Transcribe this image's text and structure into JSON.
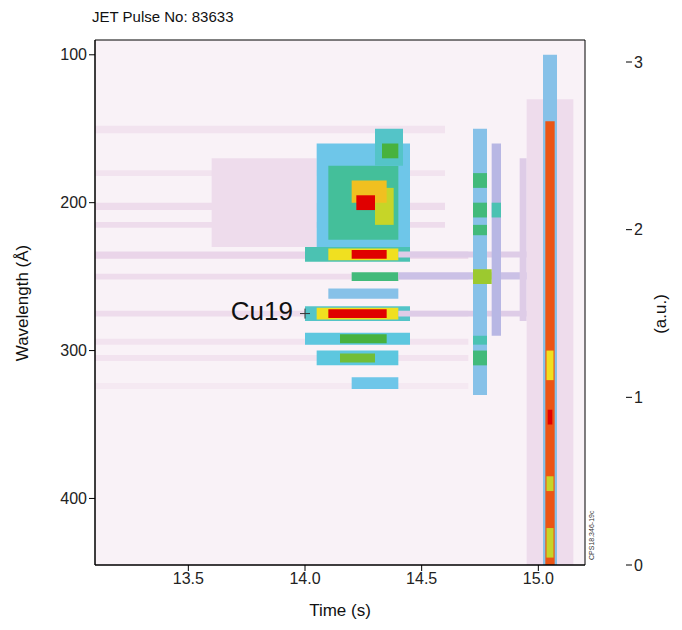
{
  "chart_data": {
    "type": "heatmap",
    "title": "JET Pulse No: 83633",
    "x_label": "Time (s)",
    "y_label": "Wavelength (Å)",
    "xlim": [
      13.1,
      15.2
    ],
    "xticks": [
      13.5,
      {
        "value": 14,
        "label": "14.0"
      },
      14.5,
      {
        "value": 15,
        "label": "15.0"
      }
    ],
    "ylim": [
      445,
      90
    ],
    "yticks": [
      100,
      200,
      300,
      400
    ],
    "colorbar": {
      "label": "(a.u.)",
      "range": [
        0,
        3
      ],
      "ticks": [
        0,
        1,
        2,
        3
      ]
    },
    "annotations": [
      {
        "text": "Cu19",
        "x": 14.0,
        "y": 275
      }
    ],
    "footnote": "CPS18.346-19c",
    "cells": [
      [
        13.1,
        15.2,
        90,
        445,
        0.25
      ],
      [
        13.1,
        14.6,
        148,
        153,
        0.5
      ],
      [
        13.1,
        14.6,
        178,
        182,
        0.5
      ],
      [
        13.1,
        14.6,
        200,
        205,
        0.6
      ],
      [
        13.1,
        14.6,
        213,
        217,
        0.6
      ],
      [
        13.1,
        14.7,
        233,
        238,
        0.7
      ],
      [
        13.1,
        14.7,
        248,
        252,
        0.6
      ],
      [
        13.1,
        14.7,
        273,
        277,
        0.6
      ],
      [
        13.1,
        14.7,
        292,
        296,
        0.5
      ],
      [
        13.1,
        14.7,
        303,
        307,
        0.5
      ],
      [
        13.1,
        14.7,
        322,
        326,
        0.4
      ],
      [
        13.6,
        14.05,
        170,
        230,
        0.6
      ],
      [
        14.05,
        14.45,
        160,
        230,
        1.3
      ],
      [
        14.1,
        14.4,
        175,
        225,
        1.7
      ],
      [
        14.3,
        14.42,
        150,
        175,
        1.5
      ],
      [
        14.33,
        14.4,
        160,
        170,
        2.0
      ],
      [
        14.3,
        14.38,
        190,
        215,
        2.3
      ],
      [
        14.2,
        14.35,
        185,
        200,
        2.5
      ],
      [
        14.22,
        14.3,
        195,
        205,
        3
      ],
      [
        14.0,
        14.45,
        230,
        240,
        1.6
      ],
      [
        14.1,
        14.4,
        231,
        239,
        2.4
      ],
      [
        14.2,
        14.35,
        232,
        238,
        3
      ],
      [
        14.2,
        14.4,
        247,
        253,
        1.8
      ],
      [
        14.1,
        14.4,
        258,
        265,
        1.2
      ],
      [
        14.0,
        14.45,
        270,
        280,
        1.5
      ],
      [
        14.05,
        14.4,
        271,
        279,
        2.4
      ],
      [
        14.1,
        14.35,
        272,
        278,
        3
      ],
      [
        14.0,
        14.45,
        288,
        296,
        1.4
      ],
      [
        14.15,
        14.35,
        289,
        295,
        2.0
      ],
      [
        14.05,
        14.4,
        300,
        310,
        1.4
      ],
      [
        14.15,
        14.3,
        302,
        308,
        2.1
      ],
      [
        14.2,
        14.4,
        318,
        326,
        1.3
      ],
      [
        14.4,
        15.0,
        247,
        252,
        0.9
      ],
      [
        14.4,
        15.0,
        233,
        237,
        0.8
      ],
      [
        14.4,
        15.0,
        273,
        277,
        0.8
      ],
      [
        14.72,
        14.78,
        150,
        330,
        1.2
      ],
      [
        14.8,
        14.84,
        160,
        290,
        1.0
      ],
      [
        14.92,
        14.95,
        170,
        280,
        0.8
      ],
      [
        14.72,
        14.8,
        245,
        255,
        2.2
      ],
      [
        14.72,
        14.78,
        180,
        190,
        1.8
      ],
      [
        14.72,
        14.78,
        200,
        210,
        1.8
      ],
      [
        14.72,
        14.78,
        215,
        222,
        1.8
      ],
      [
        14.72,
        14.78,
        300,
        310,
        1.8
      ],
      [
        14.72,
        14.78,
        290,
        296,
        1.6
      ],
      [
        14.8,
        14.84,
        200,
        210,
        1.6
      ],
      [
        14.95,
        15.15,
        130,
        445,
        0.6
      ],
      [
        15.02,
        15.08,
        100,
        445,
        1.2
      ],
      [
        15.03,
        15.07,
        145,
        445,
        2.8
      ],
      [
        15.035,
        15.065,
        300,
        320,
        2.4
      ],
      [
        15.035,
        15.065,
        385,
        395,
        2.3
      ],
      [
        15.035,
        15.065,
        420,
        440,
        2.3
      ],
      [
        15.04,
        15.06,
        340,
        350,
        3
      ]
    ]
  }
}
